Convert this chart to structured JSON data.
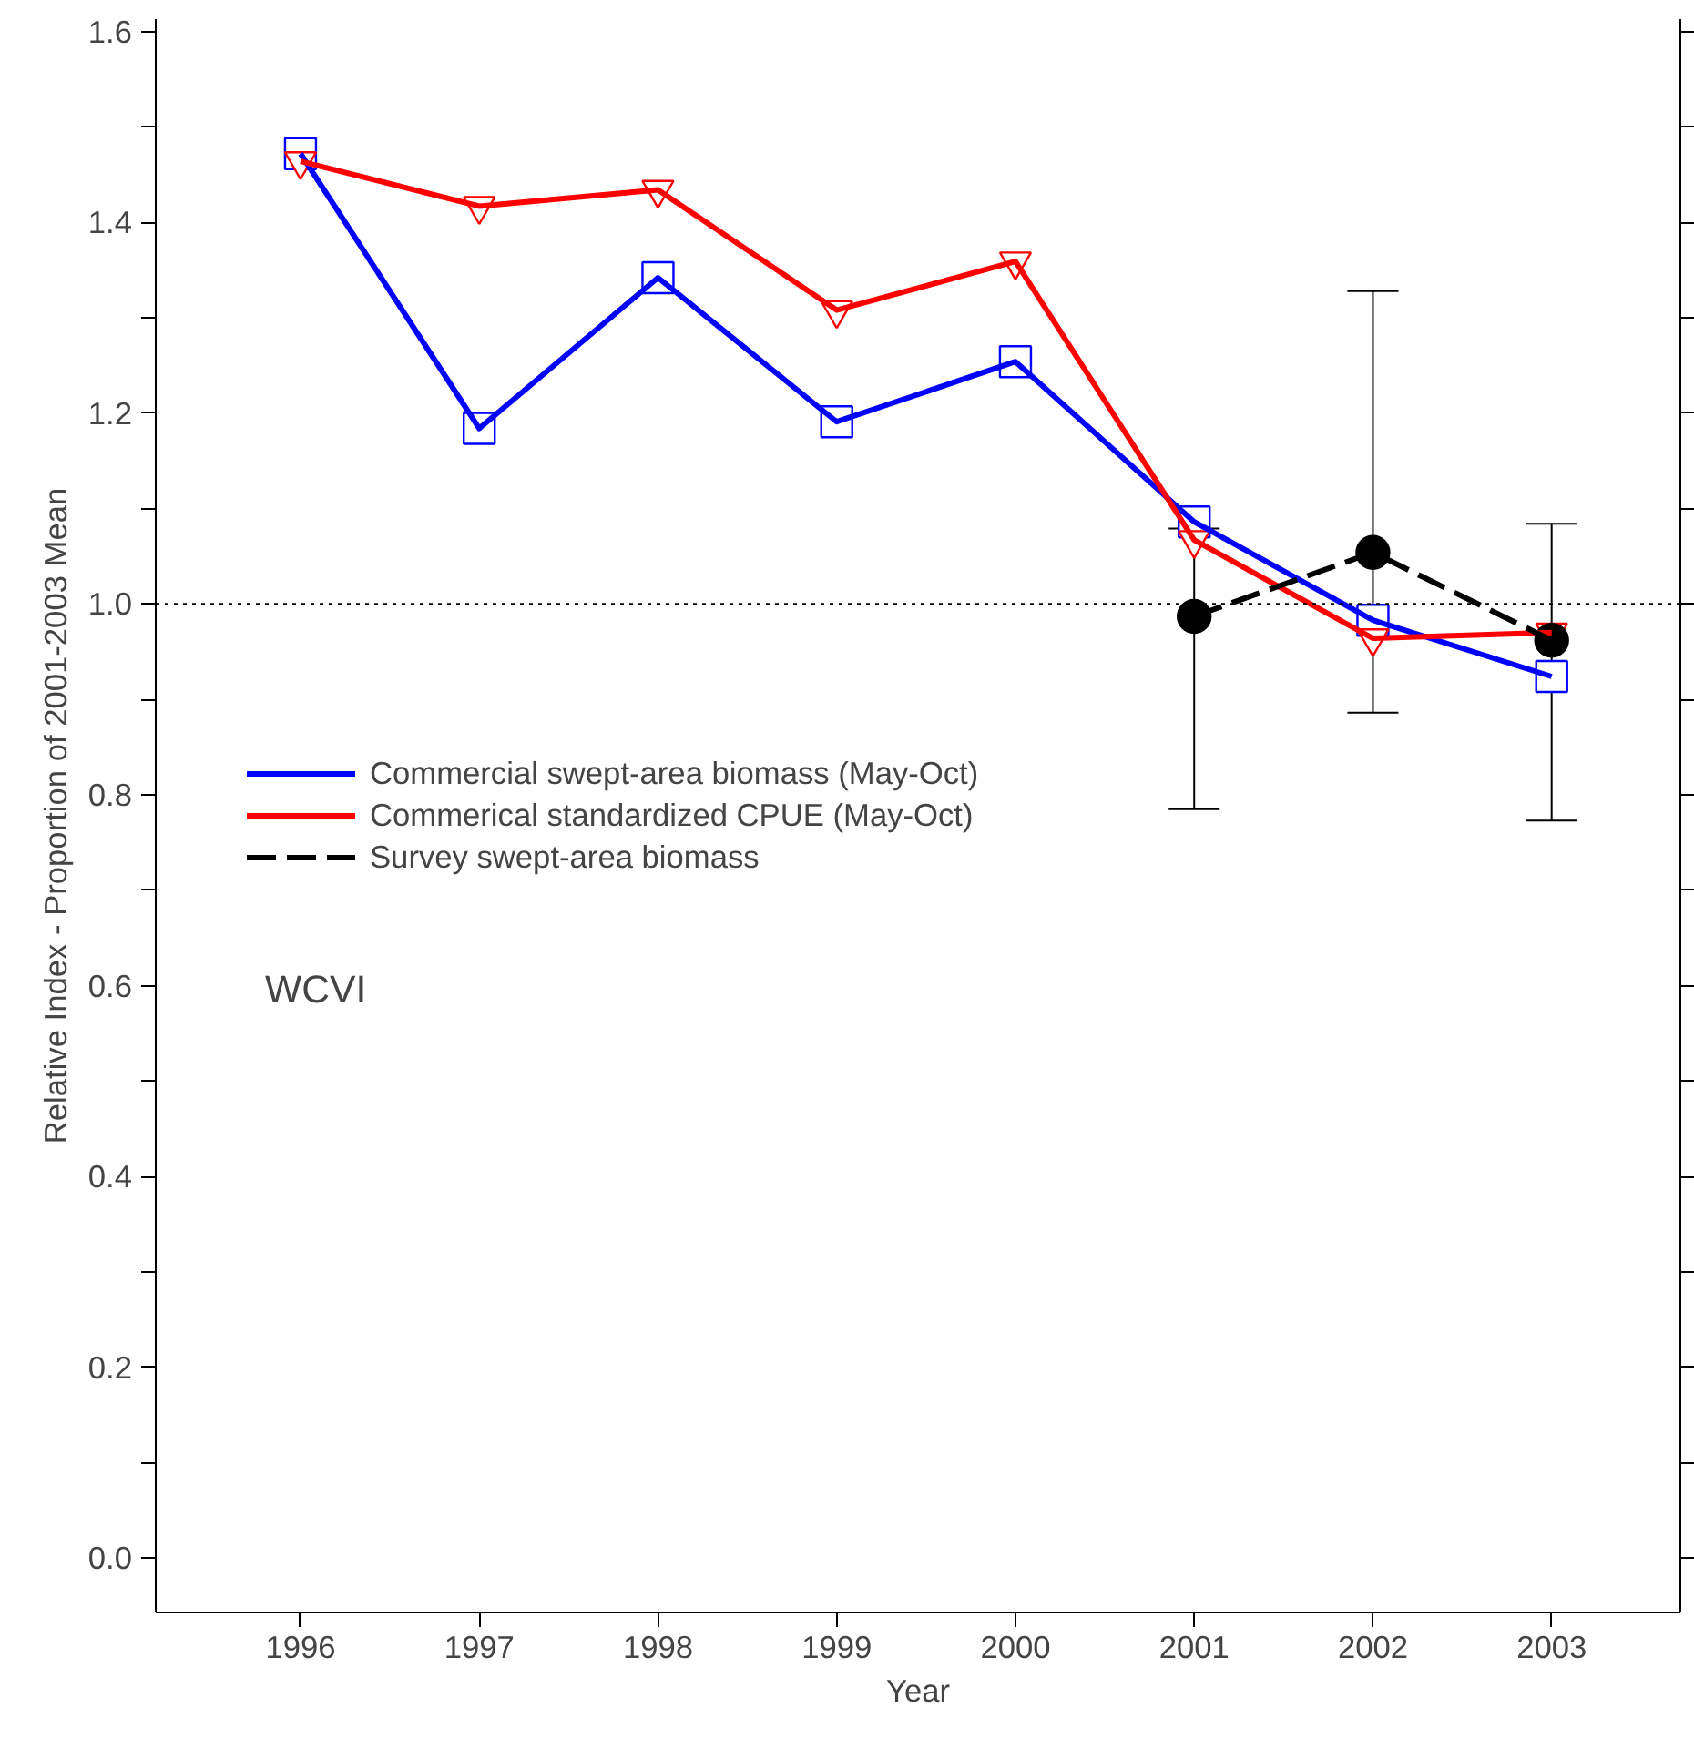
{
  "chart_data": {
    "type": "line",
    "xlabel": "Year",
    "ylabel": "Relative Index - Proportion of 2001-2003 Mean",
    "x": [
      1996,
      1997,
      1998,
      1999,
      2000,
      2001,
      2002,
      2003
    ],
    "series": [
      {
        "name": "Commercial swept-area biomass (May-Oct)",
        "color": "#0000ff",
        "marker": "square",
        "line_style": "solid",
        "values": [
          1.472,
          1.184,
          1.342,
          1.191,
          1.254,
          1.086,
          0.983,
          0.924
        ]
      },
      {
        "name": "Commerical standardized CPUE (May-Oct)",
        "color": "#ff0000",
        "marker": "triangle",
        "line_style": "solid",
        "values": [
          1.464,
          1.417,
          1.434,
          1.308,
          1.359,
          1.067,
          0.964,
          0.97
        ]
      },
      {
        "name": "Survey swept-area biomass",
        "color": "#000000",
        "marker": "circle",
        "line_style": "dashed",
        "x": [
          2001,
          2002,
          2003
        ],
        "values": [
          0.987,
          1.054,
          0.962
        ],
        "errors": [
          [
            0.785,
            1.079
          ],
          [
            0.886,
            1.328
          ],
          [
            0.773,
            1.084
          ]
        ]
      }
    ],
    "xlim": [
      1995.19,
      2003.72
    ],
    "ylim": [
      -0.057,
      1.613
    ],
    "xticks": [
      1996,
      1997,
      1998,
      1999,
      2000,
      2001,
      2002,
      2003
    ],
    "yticks": [
      {
        "value": 0.0,
        "label": "0.0"
      },
      {
        "value": 0.1,
        "label": null
      },
      {
        "value": 0.2,
        "label": "0.2"
      },
      {
        "value": 0.3,
        "label": null
      },
      {
        "value": 0.4,
        "label": "0.4"
      },
      {
        "value": 0.5,
        "label": null
      },
      {
        "value": 0.6,
        "label": "0.6"
      },
      {
        "value": 0.7,
        "label": null
      },
      {
        "value": 0.8,
        "label": "0.8"
      },
      {
        "value": 0.9,
        "label": null
      },
      {
        "value": 1.0,
        "label": "1.0"
      },
      {
        "value": 1.1,
        "label": null
      },
      {
        "value": 1.2,
        "label": "1.2"
      },
      {
        "value": 1.3,
        "label": null
      },
      {
        "value": 1.4,
        "label": "1.4"
      },
      {
        "value": 1.5,
        "label": null
      },
      {
        "value": 1.6,
        "label": "1.6"
      }
    ],
    "ref_lines": [
      {
        "axis": "y",
        "value": 1.0,
        "line_style": "dotted",
        "color": "#000000"
      }
    ],
    "annotations": [
      "WCVI"
    ],
    "legend": "left",
    "grid": false
  }
}
